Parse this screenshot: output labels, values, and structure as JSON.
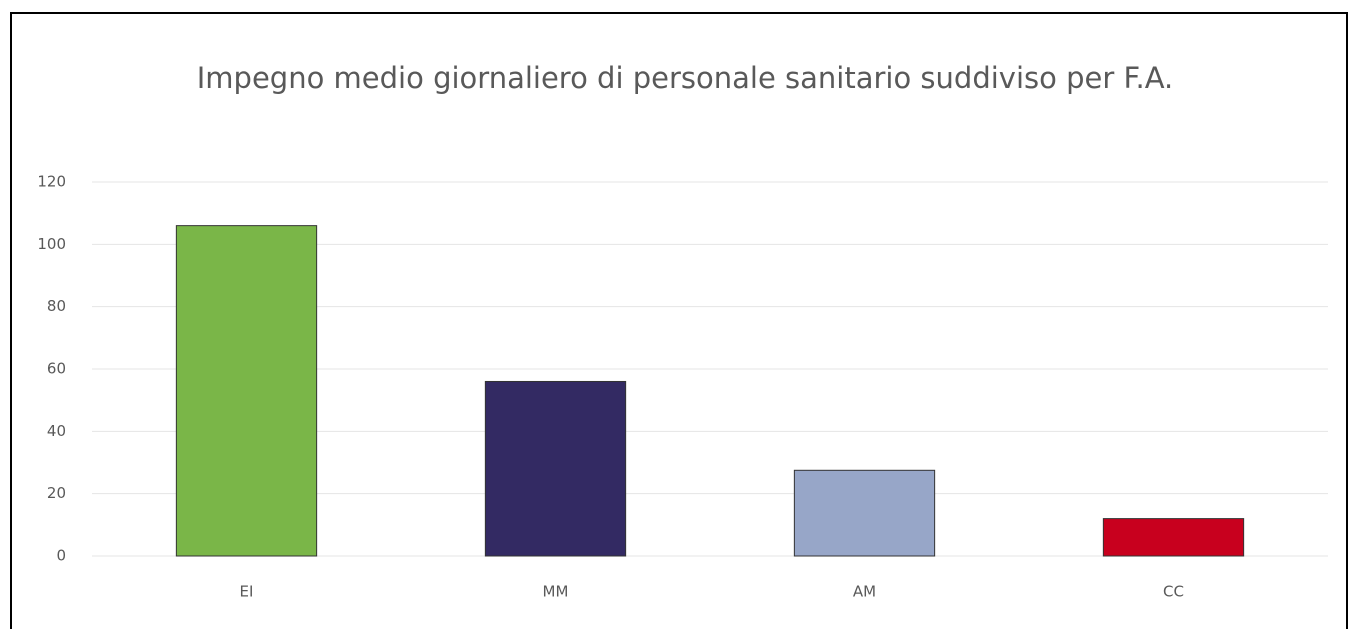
{
  "chart_data": {
    "type": "bar",
    "title": "Impegno medio giornaliero di personale sanitario suddiviso per F.A.",
    "categories": [
      "EI",
      "MM",
      "AM",
      "CC"
    ],
    "values": [
      106,
      56,
      27.5,
      12
    ],
    "colors": [
      "#7ab648",
      "#332a63",
      "#97a6c8",
      "#c8001e"
    ],
    "ylim": [
      0,
      120
    ],
    "yticks": [
      0,
      20,
      40,
      60,
      80,
      100,
      120
    ],
    "grid": true
  }
}
